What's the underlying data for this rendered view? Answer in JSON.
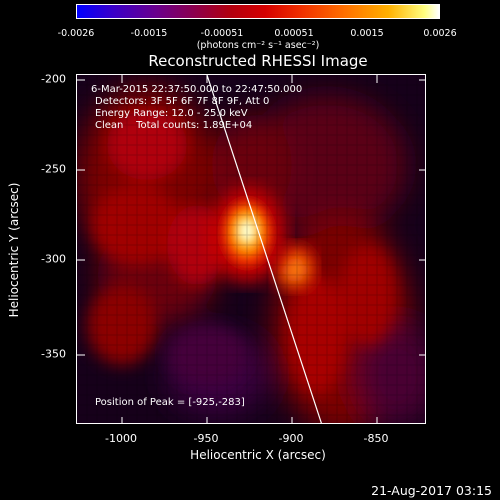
{
  "colorbar": {
    "ticks": [
      "-0.0026",
      "-0.0015",
      "-0.00051",
      "0.00051",
      "0.0015",
      "0.0026"
    ],
    "units": "(photons cm⁻² s⁻¹ asec⁻²)",
    "scale": "blue-purple-red-yellow-white"
  },
  "title": "Reconstructed RHESSI Image",
  "info": {
    "time_range": "6-Mar-2015 22:37:50.000 to 22:47:50.000",
    "detectors": "Detectors: 3F 5F 6F 7F 8F 9F, Att 0",
    "energy": "Energy Range: 12.0 - 25.0 keV",
    "method": "Clean    Total counts: 1.89E+04",
    "peak": "Position of Peak = [-925,-283]"
  },
  "axes": {
    "xlabel": "Heliocentric X (arcsec)",
    "ylabel": "Heliocentric Y (arcsec)",
    "xticks": [
      "-1000",
      "-950",
      "-900",
      "-850"
    ],
    "yticks": [
      "-200",
      "-250",
      "-300",
      "-350"
    ]
  },
  "timestamp": "21-Aug-2017 03:15"
}
